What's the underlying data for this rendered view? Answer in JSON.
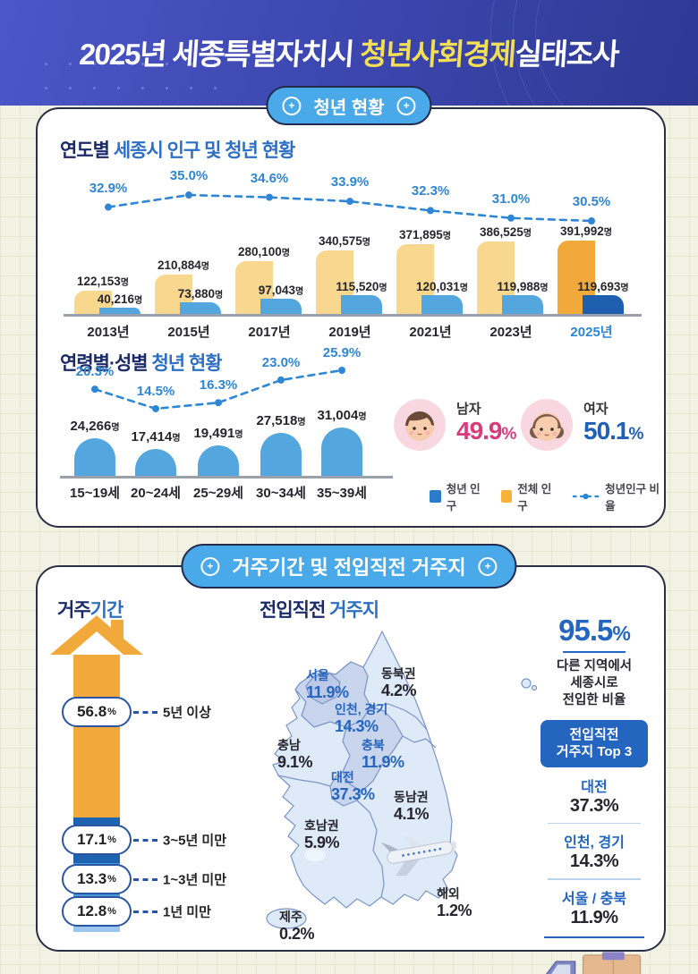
{
  "ui": {
    "header": {
      "title_prefix": "2025년 세종특별자치시 ",
      "title_highlight": "청년사회경제",
      "title_suffix": "실태조사"
    },
    "icons": {
      "plus": "+"
    },
    "section1": {
      "badge": "청년 현황",
      "yearly_title_dark": "연도별",
      "yearly_title_blue": "세종시 인구 및 청년 현황",
      "age_title_dark": "연령별·성별",
      "age_title_blue": "청년 현황",
      "gender": {
        "male_label": "남자",
        "male_value": "49.9",
        "female_label": "여자",
        "female_value": "50.1",
        "unit": "%",
        "male_color": "#d63d7d",
        "female_color": "#2160b4"
      },
      "legend": [
        {
          "label": "청년 인구",
          "swatch": "#2b7bc7",
          "type": "square"
        },
        {
          "label": "전체 인구",
          "swatch": "#f5b33b",
          "type": "square"
        },
        {
          "label": "청년인구 비율",
          "swatch": "#2e86d5",
          "type": "line"
        }
      ]
    },
    "section2": {
      "badge": "거주기간 및 전입직전 거주지",
      "residence_title_dark": "거주",
      "residence_title_blue": "기간",
      "map_title_dark": "전입직전",
      "map_title_blue": "거주지",
      "stat": {
        "value": "95.5",
        "unit": "%",
        "desc_lines": [
          "다른 지역에서",
          "세종시로",
          "전입한 비율"
        ],
        "top3_title_line1": "전입직전",
        "top3_title_line2": "거주지 Top 3",
        "top3": [
          {
            "name": "대전",
            "value": "37.3%"
          },
          {
            "name": "인천, 경기",
            "value": "14.3%"
          },
          {
            "name": "서울 / 충북",
            "value": "11.9%"
          }
        ]
      }
    }
  },
  "chart_data": [
    {
      "type": "bar",
      "id": "yearly_population",
      "title": "연도별 세종시 인구 및 청년 현황",
      "categories": [
        "2013년",
        "2015년",
        "2017년",
        "2019년",
        "2021년",
        "2023년",
        "2025년"
      ],
      "series": [
        {
          "name": "전체 인구",
          "values": [
            122153,
            210884,
            280100,
            340575,
            371895,
            386525,
            391992
          ]
        },
        {
          "name": "청년 인구",
          "values": [
            40216,
            73880,
            97043,
            115520,
            120031,
            119988,
            119693
          ]
        }
      ],
      "line": {
        "name": "청년인구 비율",
        "values": [
          32.9,
          35.0,
          34.6,
          33.9,
          32.3,
          31.0,
          30.5
        ],
        "unit": "%"
      },
      "value_unit": "명",
      "highlight_category": "2025년",
      "colors": {
        "total": "#f8d88e",
        "youth": "#54a6de",
        "total_highlight": "#f2a93b",
        "youth_highlight": "#1d5fae",
        "ratio": "#2e86d5",
        "highlight_label": "#2e86d5"
      },
      "legend_position": "bottom-right",
      "grid": false
    },
    {
      "type": "bar",
      "id": "youth_by_age",
      "title": "연령별·성별 청년 현황",
      "categories": [
        "15~19세",
        "20~24세",
        "25~29세",
        "30~34세",
        "35~39세"
      ],
      "series": [
        {
          "name": "청년 인구",
          "values": [
            24266,
            17414,
            19491,
            27518,
            31004
          ]
        }
      ],
      "line": {
        "name": "청년인구 비율",
        "values": [
          20.3,
          14.5,
          16.3,
          23.0,
          25.9
        ],
        "unit": "%"
      },
      "value_unit": "명",
      "colors": {
        "bar": "#54a6de",
        "ratio": "#2e86d5"
      },
      "grid": false
    },
    {
      "type": "bar",
      "id": "residence_period",
      "title": "거주기간",
      "categories": [
        "5년 이상",
        "3~5년 미만",
        "1~3년 미만",
        "1년 미만"
      ],
      "values": [
        56.8,
        17.1,
        13.3,
        12.8
      ],
      "unit": "%",
      "colors": {
        "segments": [
          "#f2a93b",
          "#1e63b0",
          "#4a97d8",
          "#9cc6ee"
        ]
      }
    },
    {
      "type": "map",
      "id": "previous_residence",
      "title": "전입직전 거주지",
      "unit": "%",
      "regions": [
        {
          "name": "서울",
          "value": 11.9,
          "accent": true
        },
        {
          "name": "동북권",
          "value": 4.2,
          "accent": false
        },
        {
          "name": "인천, 경기",
          "value": 14.3,
          "accent": true
        },
        {
          "name": "충남",
          "value": 9.1,
          "accent": false
        },
        {
          "name": "충북",
          "value": 11.9,
          "accent": true
        },
        {
          "name": "대전",
          "value": 37.3,
          "accent": true
        },
        {
          "name": "동남권",
          "value": 4.1,
          "accent": false
        },
        {
          "name": "호남권",
          "value": 5.9,
          "accent": false
        },
        {
          "name": "제주",
          "value": 0.2,
          "accent": false
        },
        {
          "name": "해외",
          "value": 1.2,
          "accent": false
        }
      ],
      "accent_color": "#2465c0",
      "text_color": "#26262e"
    }
  ]
}
